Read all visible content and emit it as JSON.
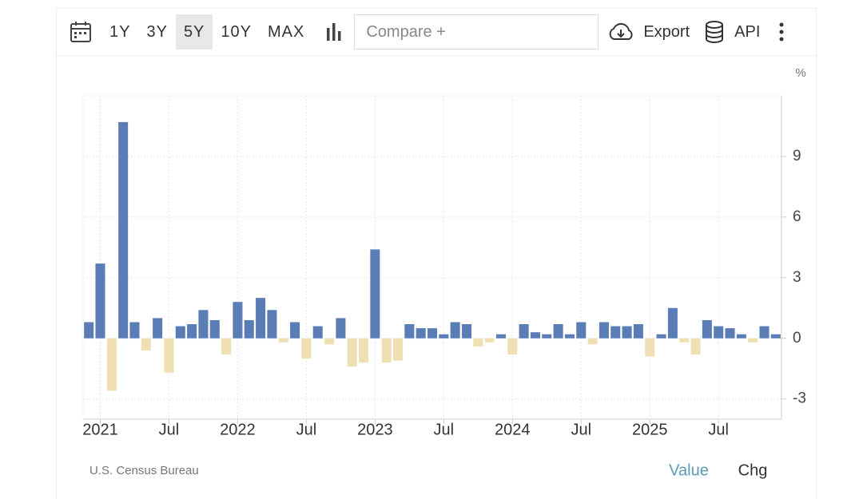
{
  "toolbar": {
    "ranges": [
      "1Y",
      "3Y",
      "5Y",
      "10Y",
      "MAX"
    ],
    "active_range": 2,
    "compare_placeholder": "Compare +",
    "export": "Export",
    "api": "API"
  },
  "chart_data": {
    "type": "bar",
    "y_unit": "%",
    "categories": [
      null,
      "2021",
      null,
      null,
      null,
      null,
      null,
      "Jul",
      null,
      null,
      null,
      null,
      null,
      "2022",
      null,
      null,
      null,
      null,
      null,
      "Jul",
      null,
      null,
      null,
      null,
      null,
      "2023",
      null,
      null,
      null,
      null,
      null,
      "Jul",
      null,
      null,
      null,
      null,
      null,
      "2024",
      null,
      null,
      null,
      null,
      null,
      "Jul",
      null,
      null,
      null,
      null,
      null,
      "2025",
      null,
      null,
      null,
      null,
      null,
      "Jul",
      null,
      null,
      null,
      null,
      null
    ],
    "values": [
      0.8,
      3.7,
      -2.6,
      10.7,
      0.8,
      -0.6,
      1.0,
      -1.7,
      0.6,
      0.7,
      1.4,
      0.9,
      -0.8,
      1.8,
      0.9,
      2.0,
      1.4,
      -0.2,
      0.8,
      -1.0,
      0.6,
      -0.3,
      1.0,
      -1.4,
      -1.2,
      4.4,
      -1.2,
      -1.1,
      0.7,
      0.5,
      0.5,
      0.2,
      0.8,
      0.7,
      -0.4,
      -0.2,
      0.2,
      -0.8,
      0.7,
      0.3,
      0.2,
      0.7,
      0.2,
      0.8,
      -0.3,
      0.8,
      0.6,
      0.6,
      0.7,
      -0.9,
      0.2,
      1.5,
      -0.2,
      -0.8,
      0.9,
      0.6,
      0.5,
      0.2,
      -0.2,
      0.6,
      0.2
    ],
    "color": "#5a7db5",
    "negative_color": "#efe0b4",
    "ylim": [
      -4,
      12
    ],
    "yticks": [
      -3,
      0,
      3,
      6,
      9
    ],
    "grid": true
  },
  "source": "U.S. Census Bureau",
  "footer_tabs": [
    "Value",
    "Chg"
  ],
  "active_tab": 0
}
